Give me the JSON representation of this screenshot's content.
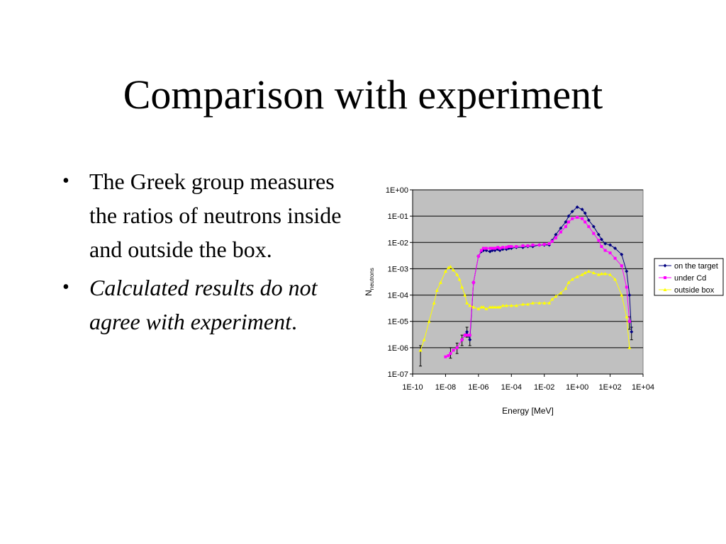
{
  "slide": {
    "title": "Comparison with experiment",
    "bullets": [
      {
        "text": "The Greek group measures the ratios of neutrons inside and outside the box.",
        "italic": false
      },
      {
        "text": "Calculated results do not agree with experiment",
        "trail": ".",
        "italic": true
      }
    ]
  },
  "colors": {
    "plot_area": "#c0c0c0",
    "on_the_target": "#000080",
    "under_cd": "#ff00ff",
    "outside_box": "#ffff00",
    "error_bars": "#000000"
  },
  "chart_data": {
    "type": "scatter",
    "x_scale": "log",
    "y_scale": "log",
    "xlim": [
      1e-10,
      10000.0
    ],
    "ylim": [
      1e-07,
      1
    ],
    "xlabel": "Energy [MeV]",
    "ylabel_main": "N",
    "ylabel_sub": "neutrons",
    "x_ticks": [
      "1E-10",
      "1E-08",
      "1E-06",
      "1E-04",
      "1E-02",
      "1E+00",
      "1E+02",
      "1E+04"
    ],
    "y_ticks": [
      "1E+00",
      "1E-01",
      "1E-02",
      "1E-03",
      "1E-04",
      "1E-05",
      "1E-06",
      "1E-07"
    ],
    "grid": "horizontal",
    "legend_position": "right",
    "series": [
      {
        "name": "on the target",
        "color": "#000080",
        "x": [
          1e-07,
          1.5e-07,
          2e-07,
          3e-07,
          5e-07,
          1e-06,
          1.5e-06,
          2e-06,
          3e-06,
          5e-06,
          7e-06,
          1e-05,
          1.5e-05,
          2e-05,
          3e-05,
          5e-05,
          7e-05,
          0.0001,
          0.0002,
          0.0005,
          0.001,
          0.002,
          0.005,
          0.01,
          0.02,
          0.03,
          0.05,
          0.1,
          0.2,
          0.3,
          0.5,
          1,
          2,
          3,
          5,
          10,
          20,
          30,
          50,
          100,
          200,
          500,
          1000,
          1500,
          2000
        ],
        "y": [
          2e-06,
          3e-06,
          4e-06,
          2e-06,
          0.0003,
          0.003,
          0.0045,
          0.005,
          0.005,
          0.0045,
          0.005,
          0.005,
          0.0055,
          0.005,
          0.0055,
          0.0055,
          0.006,
          0.006,
          0.0065,
          0.0065,
          0.007,
          0.007,
          0.008,
          0.008,
          0.008,
          0.012,
          0.02,
          0.035,
          0.06,
          0.1,
          0.15,
          0.22,
          0.18,
          0.13,
          0.07,
          0.04,
          0.02,
          0.013,
          0.009,
          0.008,
          0.006,
          0.0035,
          0.0008,
          0.0001,
          4e-06
        ]
      },
      {
        "name": "under Cd",
        "color": "#ff00ff",
        "x": [
          1e-08,
          1.5e-08,
          2e-08,
          3e-08,
          5e-08,
          1e-07,
          1.5e-07,
          2e-07,
          3e-07,
          5e-07,
          1e-06,
          1.5e-06,
          2e-06,
          3e-06,
          5e-06,
          7e-06,
          1e-05,
          1.5e-05,
          2e-05,
          3e-05,
          5e-05,
          7e-05,
          0.0001,
          0.0002,
          0.0005,
          0.001,
          0.002,
          0.005,
          0.01,
          0.02,
          0.03,
          0.05,
          0.1,
          0.2,
          0.3,
          0.5,
          1,
          2,
          3,
          5,
          10,
          20,
          30,
          50,
          100,
          200,
          500,
          1000,
          1500
        ],
        "y": [
          4.5e-07,
          5e-07,
          6e-07,
          8e-07,
          1e-06,
          2e-06,
          3e-06,
          3e-06,
          3e-06,
          0.0003,
          0.003,
          0.005,
          0.006,
          0.006,
          0.006,
          0.006,
          0.006,
          0.0065,
          0.006,
          0.0065,
          0.0065,
          0.007,
          0.007,
          0.007,
          0.0075,
          0.0075,
          0.008,
          0.008,
          0.0085,
          0.009,
          0.011,
          0.015,
          0.025,
          0.04,
          0.06,
          0.08,
          0.09,
          0.08,
          0.06,
          0.04,
          0.022,
          0.012,
          0.007,
          0.005,
          0.004,
          0.0025,
          0.0013,
          0.0002,
          1e-05
        ]
      },
      {
        "name": "outside box",
        "color": "#ffff00",
        "x": [
          3e-10,
          5e-10,
          1e-09,
          2e-09,
          3e-09,
          5e-09,
          1e-08,
          1.5e-08,
          2e-08,
          3e-08,
          5e-08,
          7e-08,
          1e-07,
          1.5e-07,
          2e-07,
          3e-07,
          5e-07,
          1e-06,
          1.5e-06,
          2e-06,
          3e-06,
          5e-06,
          7e-06,
          1e-05,
          1.5e-05,
          2e-05,
          3e-05,
          5e-05,
          0.0001,
          0.0002,
          0.0005,
          0.001,
          0.002,
          0.005,
          0.01,
          0.02,
          0.03,
          0.05,
          0.1,
          0.2,
          0.3,
          0.5,
          1,
          2,
          3,
          5,
          10,
          20,
          30,
          50,
          100,
          200,
          500,
          1000,
          1500
        ],
        "y": [
          8e-07,
          2e-06,
          1e-05,
          5e-05,
          0.00015,
          0.0003,
          0.0008,
          0.0011,
          0.0012,
          0.0009,
          0.0006,
          0.0004,
          0.0002,
          0.0001,
          5e-05,
          4e-05,
          3.5e-05,
          3e-05,
          3.5e-05,
          3.5e-05,
          3e-05,
          3.5e-05,
          3.5e-05,
          3.5e-05,
          3.5e-05,
          3.5e-05,
          4e-05,
          4e-05,
          4e-05,
          4e-05,
          4.5e-05,
          4.5e-05,
          5e-05,
          5e-05,
          5e-05,
          5e-05,
          7e-05,
          9e-05,
          0.00012,
          0.00018,
          0.0003,
          0.0004,
          0.0005,
          0.0006,
          0.0007,
          0.0008,
          0.0007,
          0.0006,
          0.00065,
          0.00065,
          0.0006,
          0.0004,
          0.0001,
          1.5e-05,
          1e-06
        ]
      }
    ]
  }
}
